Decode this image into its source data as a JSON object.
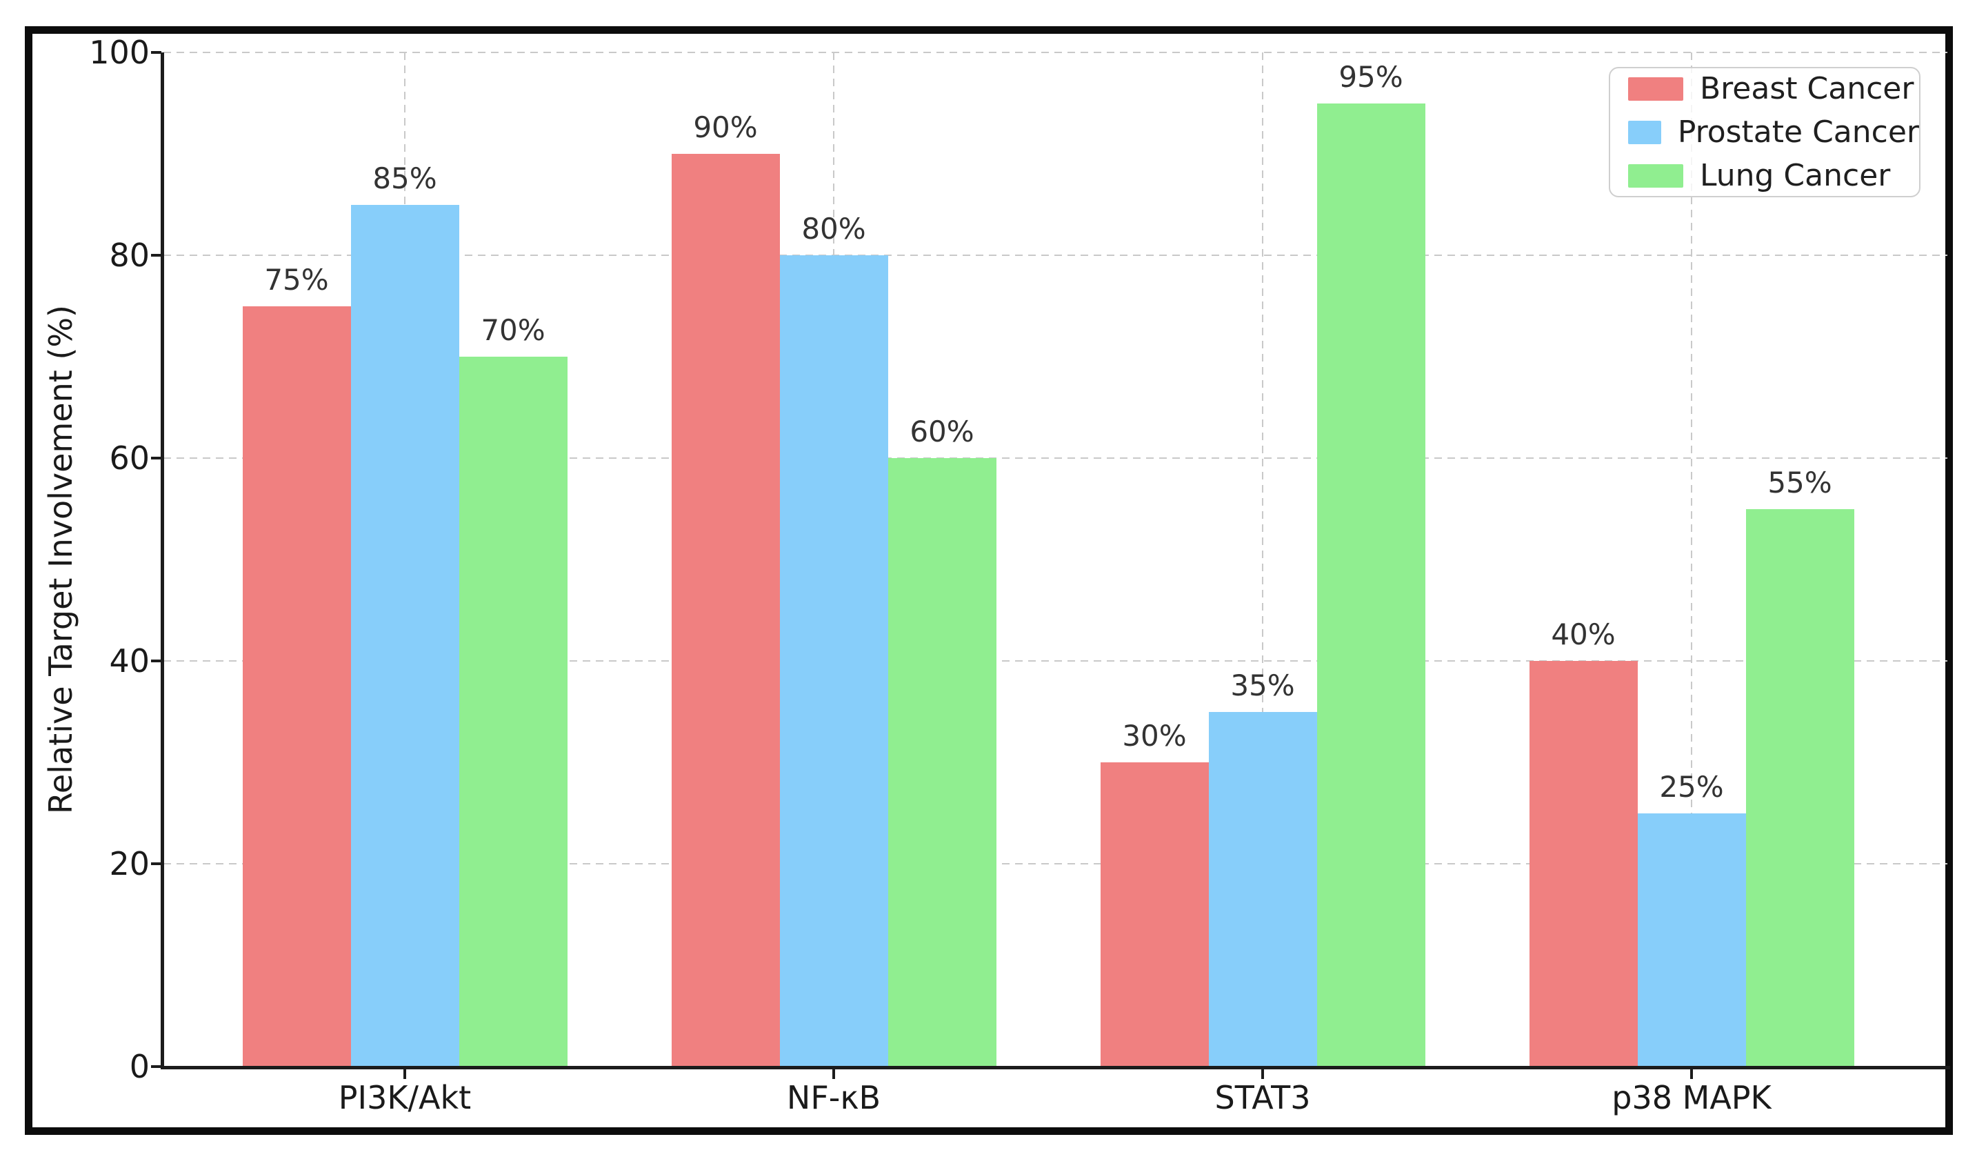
{
  "chart_data": {
    "type": "bar",
    "categories": [
      "PI3K/Akt",
      "NF-κB",
      "STAT3",
      "p38 MAPK"
    ],
    "series": [
      {
        "name": "Breast Cancer",
        "color": "#F08080",
        "values": [
          75,
          90,
          30,
          40
        ]
      },
      {
        "name": "Prostate Cancer",
        "color": "#87CEFA",
        "values": [
          85,
          80,
          35,
          25
        ]
      },
      {
        "name": "Lung Cancer",
        "color": "#90EE90",
        "values": [
          70,
          60,
          95,
          55
        ]
      }
    ],
    "title": "",
    "xlabel": "",
    "ylabel": "Relative Target Involvement (%)",
    "ylim": [
      0,
      100
    ],
    "yticks": [
      0,
      20,
      40,
      60,
      80,
      100
    ],
    "value_label_format": "{v}%",
    "grid": "dashed-both-axes",
    "gridline_color": "#c9c9c9",
    "spine_color": "#1c1c1c",
    "legend_position": "upper-right",
    "legend_entries": [
      "Breast Cancer",
      "Prostate Cancer",
      "Lung Cancer"
    ]
  }
}
